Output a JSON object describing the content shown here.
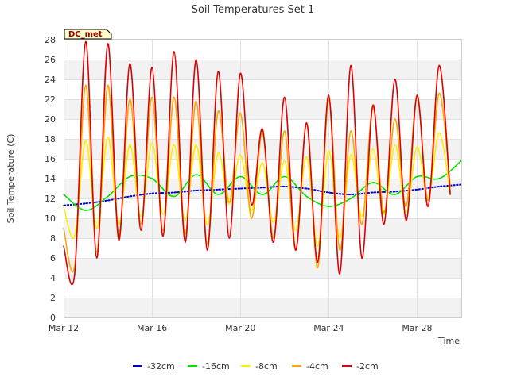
{
  "chart_data": {
    "type": "line",
    "title": "Soil Temperatures Set 1",
    "xlabel": "Time",
    "ylabel": "Soil Temperature (C)",
    "xlim": [
      "2024-03-12",
      "2024-03-30"
    ],
    "ylim": [
      0,
      28
    ],
    "y_ticks": [
      0,
      2,
      4,
      6,
      8,
      10,
      12,
      14,
      16,
      18,
      20,
      22,
      24,
      26,
      28
    ],
    "x_ticks": [
      {
        "date": "2024-03-12",
        "label": "Mar 12"
      },
      {
        "date": "2024-03-16",
        "label": "Mar 16"
      },
      {
        "date": "2024-03-20",
        "label": "Mar 20"
      },
      {
        "date": "2024-03-24",
        "label": "Mar 24"
      },
      {
        "date": "2024-03-28",
        "label": "Mar 28"
      }
    ],
    "grid": true,
    "legend_position": "bottom",
    "station_label": "DC_met",
    "series": [
      {
        "name": "-32cm",
        "color": "#0000cc",
        "x": [
          "2024-03-12",
          "2024-03-13",
          "2024-03-14",
          "2024-03-15",
          "2024-03-16",
          "2024-03-17",
          "2024-03-18",
          "2024-03-19",
          "2024-03-20",
          "2024-03-21",
          "2024-03-22",
          "2024-03-23",
          "2024-03-24",
          "2024-03-25",
          "2024-03-26",
          "2024-03-27",
          "2024-03-28",
          "2024-03-29",
          "2024-03-30"
        ],
        "values": [
          11.3,
          11.5,
          11.8,
          12.2,
          12.5,
          12.6,
          12.8,
          12.9,
          13.0,
          13.1,
          13.2,
          13.0,
          12.6,
          12.4,
          12.6,
          12.7,
          12.9,
          13.2,
          13.4
        ]
      },
      {
        "name": "-16cm",
        "color": "#00e000",
        "x": [
          "2024-03-12",
          "2024-03-13",
          "2024-03-14",
          "2024-03-15",
          "2024-03-16",
          "2024-03-17",
          "2024-03-18",
          "2024-03-19",
          "2024-03-20",
          "2024-03-21",
          "2024-03-22",
          "2024-03-23",
          "2024-03-24",
          "2024-03-25",
          "2024-03-26",
          "2024-03-27",
          "2024-03-28",
          "2024-03-29",
          "2024-03-30"
        ],
        "values": [
          12.4,
          10.8,
          12.2,
          14.2,
          14.0,
          12.2,
          14.4,
          12.4,
          14.2,
          12.4,
          14.2,
          12.2,
          11.2,
          12.0,
          13.6,
          12.4,
          14.2,
          14.0,
          15.8
        ]
      },
      {
        "name": "-8cm",
        "color": "#ffee00",
        "x": [
          "2024-03-12",
          "2024-03-12.5",
          "2024-03-13",
          "2024-03-13.5",
          "2024-03-14",
          "2024-03-14.5",
          "2024-03-15",
          "2024-03-15.5",
          "2024-03-16",
          "2024-03-16.5",
          "2024-03-17",
          "2024-03-17.5",
          "2024-03-18",
          "2024-03-18.5",
          "2024-03-19",
          "2024-03-19.5",
          "2024-03-20",
          "2024-03-20.5",
          "2024-03-21",
          "2024-03-21.5",
          "2024-03-22",
          "2024-03-22.5",
          "2024-03-23",
          "2024-03-23.5",
          "2024-03-24",
          "2024-03-24.5",
          "2024-03-25",
          "2024-03-25.5",
          "2024-03-26",
          "2024-03-26.5",
          "2024-03-27",
          "2024-03-27.5",
          "2024-03-28",
          "2024-03-28.5",
          "2024-03-29",
          "2024-03-29.5"
        ],
        "values": [
          11.2,
          8.2,
          17.8,
          9.0,
          18.2,
          9.4,
          17.4,
          10.2,
          17.6,
          10.4,
          17.4,
          9.8,
          17.4,
          9.4,
          16.6,
          11.4,
          16.4,
          10.8,
          15.6,
          9.6,
          15.8,
          8.8,
          16.2,
          7.2,
          16.8,
          8.0,
          16.4,
          10.2,
          17.0,
          10.4,
          17.4,
          10.6,
          17.2,
          12.0,
          18.6,
          12.4
        ]
      },
      {
        "name": "-4cm",
        "color": "#ffa500",
        "x": [
          "2024-03-12",
          "2024-03-12.5",
          "2024-03-13",
          "2024-03-13.5",
          "2024-03-14",
          "2024-03-14.5",
          "2024-03-15",
          "2024-03-15.5",
          "2024-03-16",
          "2024-03-16.5",
          "2024-03-17",
          "2024-03-17.5",
          "2024-03-18",
          "2024-03-18.5",
          "2024-03-19",
          "2024-03-19.5",
          "2024-03-20",
          "2024-03-20.5",
          "2024-03-21",
          "2024-03-21.5",
          "2024-03-22",
          "2024-03-22.5",
          "2024-03-23",
          "2024-03-23.5",
          "2024-03-24",
          "2024-03-24.5",
          "2024-03-25",
          "2024-03-25.5",
          "2024-03-26",
          "2024-03-26.5",
          "2024-03-27",
          "2024-03-27.5",
          "2024-03-28",
          "2024-03-28.5",
          "2024-03-29",
          "2024-03-29.5"
        ],
        "values": [
          9.0,
          5.2,
          23.4,
          6.6,
          23.4,
          8.4,
          22.0,
          9.4,
          22.2,
          8.8,
          22.2,
          8.4,
          21.8,
          7.4,
          20.8,
          11.6,
          20.6,
          10.0,
          18.6,
          8.0,
          18.8,
          6.8,
          19.6,
          5.0,
          22.0,
          6.8,
          18.8,
          9.4,
          21.2,
          10.6,
          20.0,
          11.2,
          22.2,
          11.8,
          22.6,
          13.2
        ]
      },
      {
        "name": "-2cm",
        "color": "#dd0000",
        "x": [
          "2024-03-12",
          "2024-03-12.5",
          "2024-03-13",
          "2024-03-13.5",
          "2024-03-14",
          "2024-03-14.5",
          "2024-03-15",
          "2024-03-15.5",
          "2024-03-16",
          "2024-03-16.5",
          "2024-03-17",
          "2024-03-17.5",
          "2024-03-18",
          "2024-03-18.5",
          "2024-03-19",
          "2024-03-19.5",
          "2024-03-20",
          "2024-03-20.5",
          "2024-03-21",
          "2024-03-21.5",
          "2024-03-22",
          "2024-03-22.5",
          "2024-03-23",
          "2024-03-23.5",
          "2024-03-24",
          "2024-03-24.5",
          "2024-03-25",
          "2024-03-25.5",
          "2024-03-26",
          "2024-03-26.5",
          "2024-03-27",
          "2024-03-27.5",
          "2024-03-28",
          "2024-03-28.5",
          "2024-03-29",
          "2024-03-29.5"
        ],
        "values": [
          7.2,
          4.4,
          27.8,
          6.0,
          27.6,
          7.8,
          25.6,
          8.8,
          25.2,
          8.2,
          26.8,
          7.6,
          26.0,
          6.8,
          24.8,
          8.0,
          24.6,
          11.4,
          19.0,
          7.6,
          22.2,
          6.8,
          19.6,
          5.6,
          22.4,
          4.4,
          25.4,
          6.0,
          21.4,
          9.4,
          24.0,
          9.8,
          22.4,
          11.2,
          25.4,
          12.4
        ]
      }
    ]
  }
}
